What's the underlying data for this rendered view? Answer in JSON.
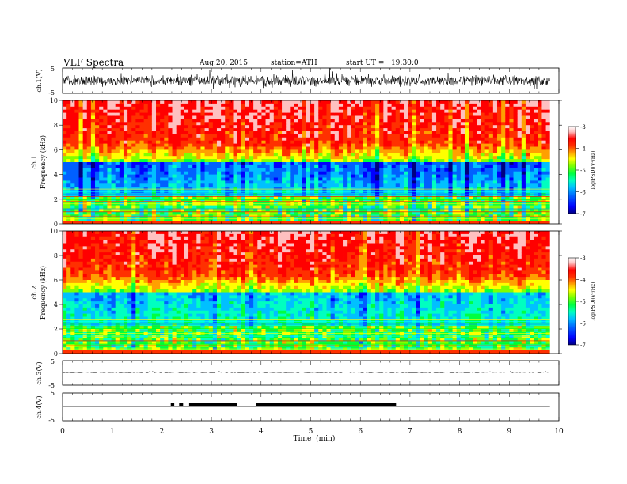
{
  "header": {
    "title": "VLF Spectra",
    "date": "Aug.20, 2015",
    "station": "station=ATH",
    "start": "start UT =   19:30:0"
  },
  "colors": {
    "scale": [
      "#000080",
      "#0000ff",
      "#0060ff",
      "#00c0ff",
      "#00ffc0",
      "#00ff40",
      "#80ff00",
      "#ffff00",
      "#ffa000",
      "#ff3000",
      "#ff0000",
      "#ffc0c0",
      "#ffffff"
    ]
  },
  "chart_data": [
    {
      "type": "line",
      "name": "ch1-waveform",
      "ylabel": "ch.1(V)",
      "ylim": [
        -5,
        5
      ],
      "yticks": [
        "5",
        "-5"
      ]
    },
    {
      "type": "heatmap",
      "name": "ch1-spectrogram",
      "ylabel": "ch.1\nFrequency  (kHz)",
      "ylim": [
        0,
        10
      ],
      "yticks": [
        "0",
        "2",
        "4",
        "6",
        "8",
        "10"
      ],
      "colorbar": {
        "label": "log(PSD)(V²/Hz)",
        "range": [
          -7,
          -3
        ],
        "ticks": [
          "-3",
          "-4",
          "-5",
          "-6",
          "-7"
        ]
      }
    },
    {
      "type": "heatmap",
      "name": "ch2-spectrogram",
      "ylabel": "ch.2\nFrequency  (kHz)",
      "ylim": [
        0,
        10
      ],
      "yticks": [
        "0",
        "2",
        "4",
        "6",
        "8",
        "10"
      ],
      "colorbar": {
        "label": "log(PSD)(V²/Hz)",
        "range": [
          -7,
          -3
        ],
        "ticks": [
          "-3",
          "-4",
          "-5",
          "-6",
          "-7"
        ]
      }
    },
    {
      "type": "line",
      "name": "ch3-waveform",
      "ylabel": "ch.3(V)",
      "ylim": [
        -5,
        5
      ],
      "yticks": [
        "5",
        "-5"
      ]
    },
    {
      "type": "line",
      "name": "ch4-waveform",
      "ylabel": "ch.4(V)",
      "ylim": [
        -5,
        5
      ],
      "yticks": [
        "5",
        "-5"
      ],
      "bursts_min": [
        [
          2.18,
          2.25
        ],
        [
          2.35,
          2.43
        ],
        [
          2.55,
          3.52
        ],
        [
          3.9,
          6.72
        ]
      ]
    }
  ],
  "xaxis": {
    "label": "Time  (min)",
    "range": [
      0,
      10
    ],
    "ticks": [
      "0",
      "1",
      "2",
      "3",
      "4",
      "5",
      "6",
      "7",
      "8",
      "9",
      "10"
    ],
    "data_end": 9.82
  }
}
